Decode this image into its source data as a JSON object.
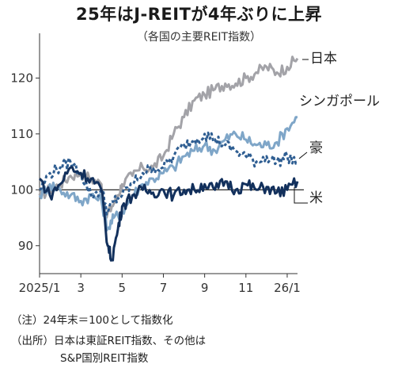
{
  "title": "25年はJ-REITが4年ぶりに上昇",
  "subtitle": "（各国の主要REIT指数）",
  "notes": {
    "note1": "（注）24年末＝100として指数化",
    "note2": "（出所）日本は東証REIT指数、その他は",
    "note3": "S&P国別REIT指数"
  },
  "chart_data": {
    "type": "line",
    "x_tick_labels": [
      "2025/1",
      "3",
      "5",
      "7",
      "9",
      "11",
      "26/1"
    ],
    "x_tick_months": [
      0,
      2,
      4,
      6,
      8,
      10,
      12
    ],
    "xlim_months": [
      0,
      12.5
    ],
    "y_ticks": [
      90,
      100,
      110,
      120
    ],
    "ylim": [
      85,
      128
    ],
    "baseline": 100,
    "series": [
      {
        "name": "日本",
        "color": "#a3a3a8",
        "dash": "",
        "x": [
          0.0,
          0.5,
          1.0,
          1.5,
          2.0,
          2.5,
          3.0,
          3.2,
          3.5,
          3.8,
          4.0,
          4.5,
          5.0,
          5.5,
          6.0,
          6.5,
          7.0,
          7.5,
          8.0,
          8.5,
          9.0,
          9.5,
          10.0,
          10.5,
          11.0,
          11.5,
          12.0,
          12.5
        ],
        "y": [
          99,
          100,
          101,
          102.5,
          103,
          102,
          101,
          95,
          97,
          99,
          101,
          102.5,
          104,
          104,
          106,
          110,
          113,
          116,
          117,
          118,
          119,
          119,
          120,
          121,
          122,
          121,
          122,
          123.5
        ]
      },
      {
        "name": "シンガポール",
        "color": "#7fa6c8",
        "dash": "",
        "x": [
          0.0,
          0.5,
          1.0,
          1.5,
          2.0,
          2.5,
          3.0,
          3.3,
          3.6,
          4.0,
          4.5,
          5.0,
          5.5,
          6.0,
          6.5,
          7.0,
          7.5,
          8.0,
          8.5,
          9.0,
          9.5,
          10.0,
          10.5,
          11.0,
          11.5,
          12.0,
          12.5
        ],
        "y": [
          99,
          101,
          100,
          99,
          98,
          99,
          98,
          93,
          95,
          96,
          99,
          101,
          102,
          103,
          104,
          106,
          107,
          108,
          107,
          109,
          110,
          109,
          108,
          108,
          108.5,
          111,
          113
        ]
      },
      {
        "name": "豪",
        "color": "#2f5e92",
        "dash": "4,3",
        "x": [
          0.0,
          0.5,
          1.0,
          1.5,
          2.0,
          2.5,
          3.0,
          3.3,
          3.6,
          4.0,
          4.5,
          5.0,
          5.5,
          6.0,
          6.5,
          7.0,
          7.5,
          8.0,
          8.5,
          9.0,
          9.5,
          10.0,
          10.5,
          11.0,
          11.5,
          12.0,
          12.5
        ],
        "y": [
          100,
          103,
          104,
          105,
          103,
          99,
          100,
          96,
          98,
          99,
          101,
          103,
          104,
          104,
          106,
          108,
          109,
          110,
          109,
          108,
          107,
          106,
          105,
          106,
          105,
          106,
          105
        ]
      },
      {
        "name": "米",
        "color": "#12305c",
        "dash": "",
        "x": [
          0.0,
          0.5,
          1.0,
          1.5,
          2.0,
          2.5,
          3.0,
          3.3,
          3.5,
          3.8,
          4.0,
          4.5,
          5.0,
          5.5,
          6.0,
          6.5,
          7.0,
          7.5,
          8.0,
          8.5,
          9.0,
          9.5,
          10.0,
          10.5,
          11.0,
          11.5,
          12.0,
          12.5
        ],
        "y": [
          102,
          99,
          101,
          104,
          103,
          102,
          100,
          90,
          87.5,
          93,
          97,
          99,
          100,
          99.5,
          100,
          99,
          100,
          100,
          101,
          100,
          101.5,
          100,
          101,
          100,
          100.5,
          99.5,
          100,
          101.5
        ]
      }
    ]
  }
}
